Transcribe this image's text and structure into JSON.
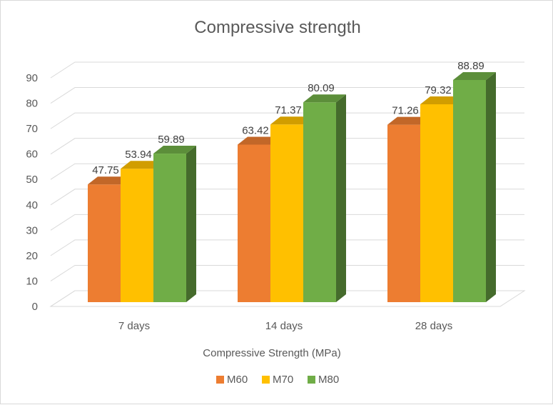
{
  "chart_data": {
    "type": "bar",
    "style": "3d-clustered-column",
    "title": "Compressive strength",
    "xlabel": "Compressive Strength (MPa)",
    "ylabel": "",
    "categories": [
      "7 days",
      "14 days",
      "28 days"
    ],
    "series": [
      {
        "name": "M60",
        "values": [
          47.75,
          63.42,
          71.26
        ],
        "color": "#ED7D31"
      },
      {
        "name": "M70",
        "values": [
          53.94,
          71.37,
          79.32
        ],
        "color": "#FFC000"
      },
      {
        "name": "M80",
        "values": [
          59.89,
          80.09,
          88.89
        ],
        "color": "#70AD47"
      }
    ],
    "ylim": [
      0,
      90
    ],
    "yticks": [
      0,
      10,
      20,
      30,
      40,
      50,
      60,
      70,
      80,
      90
    ],
    "grid": true,
    "legend_position": "bottom"
  }
}
